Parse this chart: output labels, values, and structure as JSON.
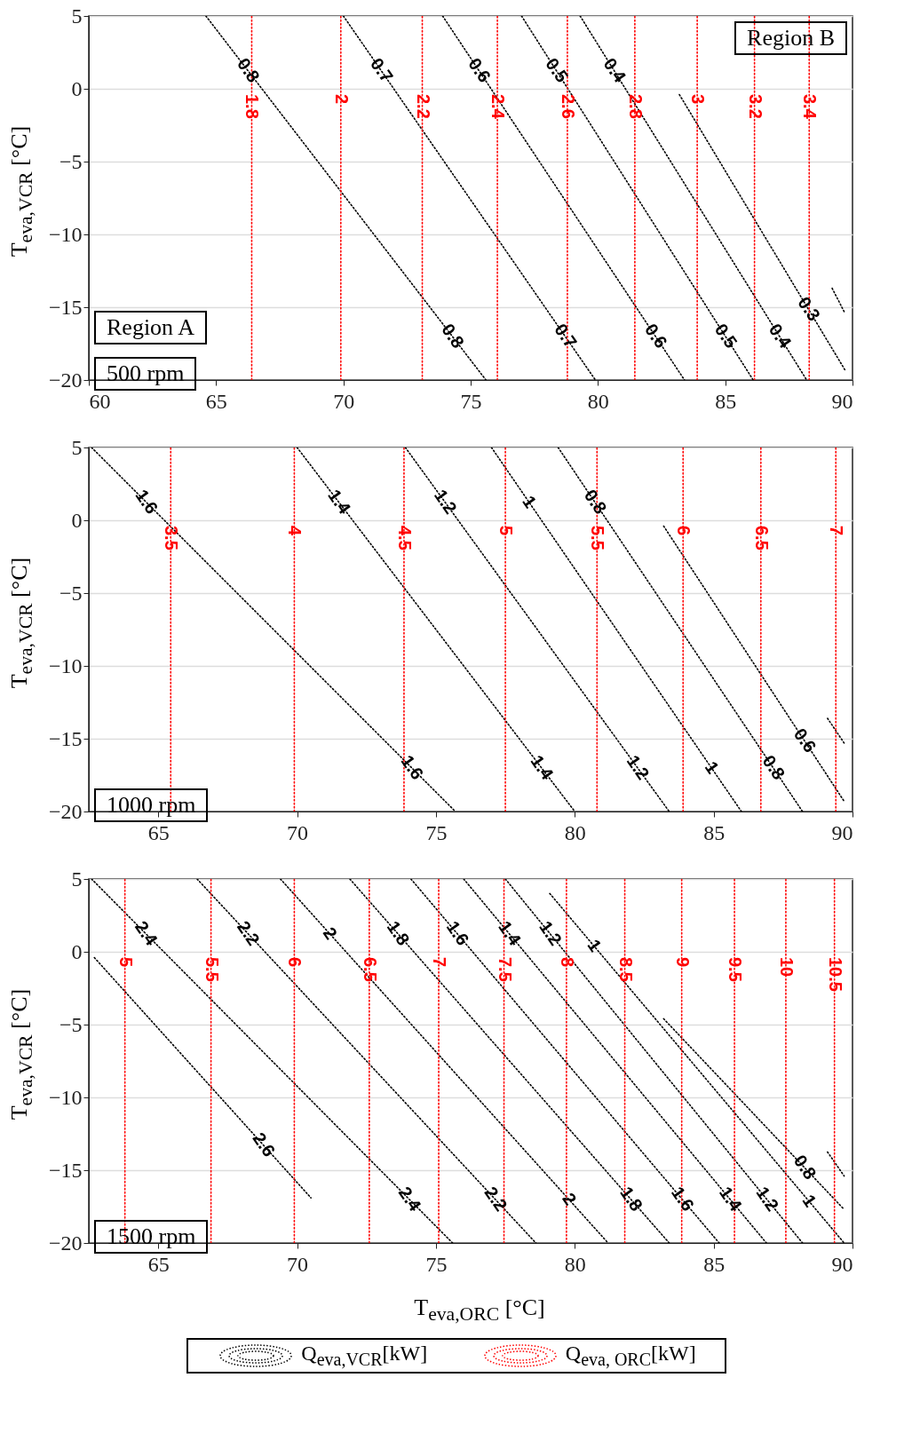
{
  "chart_data": [
    {
      "type": "line",
      "ylabel": "T$_{eva,VCR}$ [°C]",
      "xlim": [
        60,
        90
      ],
      "xticks": [
        60,
        65,
        70,
        75,
        80,
        85,
        90
      ],
      "ylim": [
        -20,
        5
      ],
      "yticks": [
        -20,
        -15,
        -10,
        -5,
        0,
        5
      ],
      "grid": "y",
      "line_style": "dotted",
      "series": [
        {
          "name": "0.8",
          "color": "#000000",
          "x": [
            64.6,
            75.6
          ],
          "values": [
            5,
            -20
          ]
        },
        {
          "name": "0.7",
          "color": "#000000",
          "x": [
            70.0,
            79.9
          ],
          "values": [
            5,
            -20
          ]
        },
        {
          "name": "0.6",
          "color": "#000000",
          "x": [
            73.9,
            83.4
          ],
          "values": [
            5,
            -20
          ]
        },
        {
          "name": "0.5",
          "color": "#000000",
          "x": [
            77.0,
            86.1
          ],
          "values": [
            5,
            -20
          ]
        },
        {
          "name": "0.4",
          "color": "#000000",
          "x": [
            79.3,
            88.2
          ],
          "values": [
            5,
            -20
          ]
        },
        {
          "name": "0.3",
          "color": "#000000",
          "x": [
            83.2,
            89.7
          ],
          "values": [
            -0.4,
            -19.3
          ]
        },
        {
          "color": "#000000",
          "x": [
            89.2,
            89.7
          ],
          "values": [
            -13.7,
            -15.4
          ]
        },
        {
          "name": "1.8",
          "color": "#ff0000",
          "x": [
            66.4,
            66.4
          ],
          "values": [
            -20,
            5
          ]
        },
        {
          "name": "2",
          "color": "#ff0000",
          "x": [
            69.9,
            69.9
          ],
          "values": [
            -20,
            5
          ]
        },
        {
          "name": "2.2",
          "color": "#ff0000",
          "x": [
            73.1,
            73.1
          ],
          "values": [
            -20,
            5
          ]
        },
        {
          "name": "2.4",
          "color": "#ff0000",
          "x": [
            76.05,
            76.05
          ],
          "values": [
            -20,
            5
          ]
        },
        {
          "name": "2.6",
          "color": "#ff0000",
          "x": [
            78.8,
            78.8
          ],
          "values": [
            -20,
            5
          ]
        },
        {
          "name": "2.8",
          "color": "#ff0000",
          "x": [
            81.45,
            81.45
          ],
          "values": [
            -20,
            5
          ]
        },
        {
          "name": "3",
          "color": "#ff0000",
          "x": [
            83.9,
            83.9
          ],
          "values": [
            -20,
            5
          ]
        },
        {
          "name": "3.2",
          "color": "#ff0000",
          "x": [
            86.15,
            86.15
          ],
          "values": [
            -20,
            5
          ]
        },
        {
          "name": "3.4",
          "color": "#ff0000",
          "x": [
            88.3,
            88.3
          ],
          "values": [
            -20,
            5
          ]
        }
      ],
      "annotations": [
        "Region B",
        "Region A",
        "500 rpm"
      ]
    },
    {
      "type": "line",
      "ylabel": "T$_{eva,VCR}$ [°C]",
      "xlim": [
        62.5,
        90
      ],
      "xticks": [
        65,
        70,
        75,
        80,
        85,
        90
      ],
      "ylim": [
        -20,
        5
      ],
      "yticks": [
        -20,
        -15,
        -10,
        -5,
        0,
        5
      ],
      "grid": "y",
      "line_style": "dotted",
      "series": [
        {
          "name": "1.6",
          "color": "#000000",
          "x": [
            62.6,
            75.7
          ],
          "values": [
            5,
            -20
          ]
        },
        {
          "name": "1.4",
          "color": "#000000",
          "x": [
            70.0,
            80.0
          ],
          "values": [
            5,
            -20
          ]
        },
        {
          "name": "1.2",
          "color": "#000000",
          "x": [
            73.9,
            83.4
          ],
          "values": [
            5,
            -20
          ]
        },
        {
          "name": "1",
          "color": "#000000",
          "x": [
            77.0,
            86.0
          ],
          "values": [
            5,
            -20
          ]
        },
        {
          "name": "0.8",
          "color": "#000000",
          "x": [
            79.4,
            88.2
          ],
          "values": [
            5,
            -20
          ]
        },
        {
          "name": "0.6",
          "color": "#000000",
          "x": [
            83.2,
            89.7
          ],
          "values": [
            -0.4,
            -19.3
          ]
        },
        {
          "color": "#000000",
          "x": [
            89.1,
            89.7
          ],
          "values": [
            -13.6,
            -15.3
          ]
        },
        {
          "name": "3.5",
          "color": "#ff0000",
          "x": [
            65.45,
            65.45
          ],
          "values": [
            -20,
            5
          ]
        },
        {
          "name": "4",
          "color": "#ff0000",
          "x": [
            69.9,
            69.9
          ],
          "values": [
            -20,
            5
          ]
        },
        {
          "name": "4.5",
          "color": "#ff0000",
          "x": [
            73.85,
            73.85
          ],
          "values": [
            -20,
            5
          ]
        },
        {
          "name": "5",
          "color": "#ff0000",
          "x": [
            77.5,
            77.5
          ],
          "values": [
            -20,
            5
          ]
        },
        {
          "name": "5.5",
          "color": "#ff0000",
          "x": [
            80.8,
            80.8
          ],
          "values": [
            -20,
            5
          ]
        },
        {
          "name": "6",
          "color": "#ff0000",
          "x": [
            83.9,
            83.9
          ],
          "values": [
            -20,
            5
          ]
        },
        {
          "name": "6.5",
          "color": "#ff0000",
          "x": [
            86.7,
            86.7
          ],
          "values": [
            -20,
            5
          ]
        },
        {
          "name": "7",
          "color": "#ff0000",
          "x": [
            89.4,
            89.4
          ],
          "values": [
            -20,
            5
          ]
        }
      ],
      "annotations": [
        "1000 rpm"
      ]
    },
    {
      "type": "line",
      "ylabel": "T$_{eva,VCR}$ [°C]",
      "xlabel": "T$_{eva,ORC}$ [°C]",
      "xlim": [
        62.5,
        90
      ],
      "xticks": [
        65,
        70,
        75,
        80,
        85,
        90
      ],
      "ylim": [
        -20,
        5
      ],
      "yticks": [
        -20,
        -15,
        -10,
        -5,
        0,
        5
      ],
      "grid": "y",
      "line_style": "dotted",
      "series": [
        {
          "name": "2.6",
          "color": "#000000",
          "x": [
            62.7,
            70.5
          ],
          "values": [
            -0.4,
            -16.9
          ]
        },
        {
          "name": "2.4",
          "color": "#000000",
          "x": [
            62.6,
            75.6
          ],
          "values": [
            5,
            -20
          ]
        },
        {
          "name": "2.2",
          "color": "#000000",
          "x": [
            66.4,
            78.6
          ],
          "values": [
            5,
            -20
          ]
        },
        {
          "name": "2",
          "color": "#000000",
          "x": [
            69.4,
            81.2
          ],
          "values": [
            5,
            -20
          ]
        },
        {
          "name": "1.8",
          "color": "#000000",
          "x": [
            71.9,
            83.4
          ],
          "values": [
            5,
            -20
          ]
        },
        {
          "name": "1.6",
          "color": "#000000",
          "x": [
            74.1,
            85.2
          ],
          "values": [
            5,
            -20
          ]
        },
        {
          "name": "1.4",
          "color": "#000000",
          "x": [
            76.0,
            86.9
          ],
          "values": [
            5,
            -20
          ]
        },
        {
          "name": "1.2",
          "color": "#000000",
          "x": [
            77.5,
            88.2
          ],
          "values": [
            5,
            -20
          ]
        },
        {
          "name": "1",
          "color": "#000000",
          "x": [
            79.1,
            89.7
          ],
          "values": [
            4.0,
            -20
          ]
        },
        {
          "name": "0.8",
          "color": "#000000",
          "x": [
            83.2,
            89.7
          ],
          "values": [
            -4.6,
            -17.7
          ]
        },
        {
          "color": "#000000",
          "x": [
            89.1,
            89.7
          ],
          "values": [
            -13.75,
            -15.4
          ]
        },
        {
          "name": "5",
          "color": "#ff0000",
          "x": [
            63.8,
            63.8
          ],
          "values": [
            -20,
            5
          ]
        },
        {
          "name": "5.5",
          "color": "#ff0000",
          "x": [
            66.9,
            66.9
          ],
          "values": [
            -20,
            5
          ]
        },
        {
          "name": "6",
          "color": "#ff0000",
          "x": [
            69.9,
            69.9
          ],
          "values": [
            -20,
            5
          ]
        },
        {
          "name": "6.5",
          "color": "#ff0000",
          "x": [
            72.6,
            72.6
          ],
          "values": [
            -20,
            5
          ]
        },
        {
          "name": "7",
          "color": "#ff0000",
          "x": [
            75.1,
            75.1
          ],
          "values": [
            -20,
            5
          ]
        },
        {
          "name": "7.5",
          "color": "#ff0000",
          "x": [
            77.45,
            77.45
          ],
          "values": [
            -20,
            5
          ]
        },
        {
          "name": "8",
          "color": "#ff0000",
          "x": [
            79.7,
            79.7
          ],
          "values": [
            -20,
            5
          ]
        },
        {
          "name": "8.5",
          "color": "#ff0000",
          "x": [
            81.8,
            81.8
          ],
          "values": [
            -20,
            5
          ]
        },
        {
          "name": "9",
          "color": "#ff0000",
          "x": [
            83.85,
            83.85
          ],
          "values": [
            -20,
            5
          ]
        },
        {
          "name": "9.5",
          "color": "#ff0000",
          "x": [
            85.75,
            85.75
          ],
          "values": [
            -20,
            5
          ]
        },
        {
          "name": "10",
          "color": "#ff0000",
          "x": [
            87.6,
            87.6
          ],
          "values": [
            -20,
            5
          ]
        },
        {
          "name": "10.5",
          "color": "#ff0000",
          "x": [
            89.35,
            89.35
          ],
          "values": [
            -20,
            5
          ]
        }
      ],
      "annotations": [
        "1500 rpm",
        "Q$_{eva,VCR}$[kW]",
        "Q$_{eva, ORC}$[kW]"
      ]
    }
  ]
}
